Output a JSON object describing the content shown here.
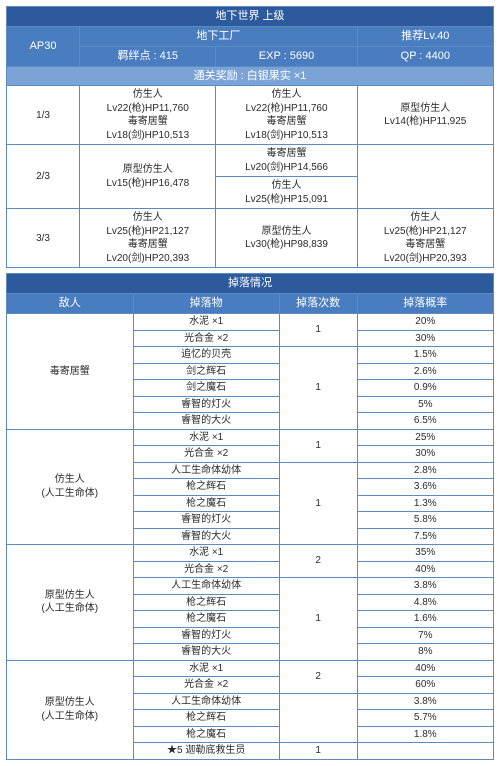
{
  "colors": {
    "hdr_dark": "#2d5a9c",
    "hdr_blue": "#4a7cc0",
    "hdr_light": "#7ba3d6",
    "border": "#5b8bc0",
    "text": "#2a2a2a",
    "bg": "#ffffff"
  },
  "title": "地下世界 上级",
  "ap": "AP30",
  "location": "地下工厂",
  "rec_lv": "推荐Lv.40",
  "bond": "羁绊点 : 415",
  "exp": "EXP : 5690",
  "qp": "QP : 4400",
  "clear_reward": "通关奖励 : 白银果实 ×1",
  "waves": [
    {
      "n": "1/3",
      "c1": "仿生人\nLv22(枪)HP11,760\n毒寄居蟹\nLv18(剑)HP10,513",
      "c2": "仿生人\nLv22(枪)HP11,760\n毒寄居蟹\nLv18(剑)HP10,513",
      "c3": "原型仿生人\nLv14(枪)HP11,925"
    },
    {
      "n": "2/3",
      "c1": "原型仿生人\nLv15(枪)HP16,478",
      "c2t": "毒寄居蟹\nLv20(剑)HP14,566",
      "c2b": "仿生人\nLv25(枪)HP15,091",
      "c3": ""
    },
    {
      "n": "3/3",
      "c1": "仿生人\nLv25(枪)HP21,127\n毒寄居蟹\nLv20(剑)HP20,393",
      "c2": "原型仿生人\nLv30(枪)HP98,839",
      "c3": "仿生人\nLv25(枪)HP21,127\n毒寄居蟹\nLv20(剑)HP20,393"
    }
  ],
  "drop_title": "掉落情况",
  "drop_head": {
    "enemy": "敌人",
    "item": "掉落物",
    "count": "掉落次数",
    "rate": "掉落概率"
  },
  "drops": [
    {
      "enemy": "毒寄居蟹",
      "groups": [
        {
          "cnt": "1",
          "items": [
            [
              "水泥 ×1",
              "20%"
            ],
            [
              "光合金 ×2",
              "30%"
            ]
          ]
        },
        {
          "cnt": "1",
          "items": [
            [
              "追忆的贝壳",
              "1.5%"
            ],
            [
              "剑之辉石",
              "2.6%"
            ],
            [
              "剑之魔石",
              "0.9%"
            ],
            [
              "睿智的灯火",
              "5%"
            ],
            [
              "睿智的大火",
              "6.5%"
            ]
          ]
        }
      ]
    },
    {
      "enemy": "仿生人\n(人工生命体)",
      "groups": [
        {
          "cnt": "1",
          "items": [
            [
              "水泥 ×1",
              "25%"
            ],
            [
              "光合金 ×2",
              "30%"
            ]
          ]
        },
        {
          "cnt": "1",
          "items": [
            [
              "人工生命体幼体",
              "2.8%"
            ],
            [
              "枪之辉石",
              "3.6%"
            ],
            [
              "枪之魔石",
              "1.3%"
            ],
            [
              "睿智的灯火",
              "5.8%"
            ],
            [
              "睿智的大火",
              "7.5%"
            ]
          ]
        }
      ]
    },
    {
      "enemy": "原型仿生人\n(人工生命体)",
      "groups": [
        {
          "cnt": "2",
          "items": [
            [
              "水泥 ×1",
              "35%"
            ],
            [
              "光合金 ×2",
              "40%"
            ]
          ]
        },
        {
          "cnt": "1",
          "items": [
            [
              "人工生命体幼体",
              "3.8%"
            ],
            [
              "枪之辉石",
              "4.8%"
            ],
            [
              "枪之魔石",
              "1.6%"
            ],
            [
              "睿智的灯火",
              "7%"
            ],
            [
              "睿智的大火",
              "8%"
            ]
          ]
        }
      ]
    },
    {
      "enemy": "原型仿生人\n(人工生命体)",
      "groups": [
        {
          "cnt": "2",
          "items": [
            [
              "水泥 ×1",
              "40%"
            ],
            [
              "光合金 ×2",
              "60%"
            ]
          ]
        },
        {
          "cnt": "",
          "items": [
            [
              "人工生命体幼体",
              "3.8%"
            ],
            [
              "枪之辉石",
              "5.7%"
            ],
            [
              "枪之魔石",
              "1.8%"
            ]
          ]
        },
        {
          "cnt": "1",
          "items": [
            [
              "★5 迦勒底救生员",
              ""
            ]
          ]
        }
      ]
    }
  ]
}
